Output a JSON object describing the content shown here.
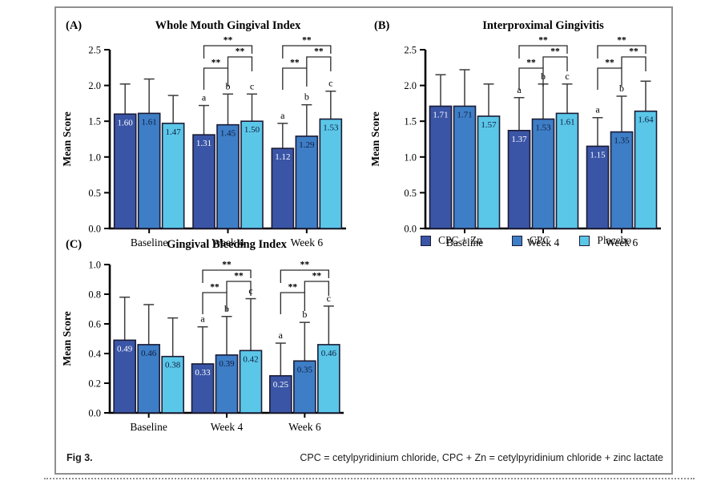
{
  "figure": {
    "caption_left": "Fig 3.",
    "caption_right": "CPC = cetylpyridinium chloride, CPC + Zn = cetylpyridinium chloride + zinc lactate"
  },
  "legend": {
    "position": "right-of-panel-C",
    "items": [
      {
        "label": "CPC + Zn",
        "color": "#3A55A6"
      },
      {
        "label": "CPC",
        "color": "#3E7EC6"
      },
      {
        "label": "Placebo",
        "color": "#5BC7E8"
      }
    ]
  },
  "colors": {
    "bar_outline": "#1b1b35",
    "error_bar": "#3c3c3c",
    "axis": "#000000",
    "value_label_on_dark": "#ffffff",
    "value_label_on_light": "#101c40",
    "figure_border": "#8f8f8f"
  },
  "chart_data": [
    {
      "type": "bar",
      "panel": "(A)",
      "title": "Whole Mouth Gingival Index",
      "ylabel": "Mean Score",
      "categories": [
        "Baseline",
        "Week 4",
        "Week 6"
      ],
      "yticks": [
        "0.0",
        "0.5",
        "1.0",
        "1.5",
        "2.0",
        "2.5"
      ],
      "ylim": [
        0,
        2.5
      ],
      "grid": false,
      "series": [
        {
          "name": "CPC + Zn",
          "values": [
            1.6,
            1.31,
            1.12
          ],
          "err_top": [
            2.02,
            1.72,
            1.47
          ]
        },
        {
          "name": "CPC",
          "values": [
            1.61,
            1.45,
            1.29
          ],
          "err_top": [
            2.09,
            1.88,
            1.73
          ]
        },
        {
          "name": "Placebo",
          "values": [
            1.47,
            1.5,
            1.53
          ],
          "err_top": [
            1.86,
            1.88,
            1.92
          ]
        }
      ],
      "sig": [
        {
          "group_index": 1,
          "letters": [
            "a",
            "b",
            "c"
          ],
          "brackets": [
            {
              "pair": [
                0,
                2
              ],
              "marker": "**"
            },
            {
              "pair": [
                1,
                2
              ],
              "marker": "**"
            },
            {
              "pair": [
                0,
                1
              ],
              "marker": "**"
            }
          ]
        },
        {
          "group_index": 2,
          "letters": [
            "a",
            "b",
            "c"
          ],
          "brackets": [
            {
              "pair": [
                0,
                2
              ],
              "marker": "**"
            },
            {
              "pair": [
                1,
                2
              ],
              "marker": "**"
            },
            {
              "pair": [
                0,
                1
              ],
              "marker": "**"
            }
          ]
        }
      ]
    },
    {
      "type": "bar",
      "panel": "(B)",
      "title": "Interproximal Gingivitis",
      "ylabel": "Mean Score",
      "categories": [
        "Baseline",
        "Week 4",
        "Week 6"
      ],
      "yticks": [
        "0.0",
        "0.5",
        "1.0",
        "1.5",
        "2.0",
        "2.5"
      ],
      "ylim": [
        0,
        2.5
      ],
      "grid": false,
      "series": [
        {
          "name": "CPC + Zn",
          "values": [
            1.71,
            1.37,
            1.15
          ],
          "err_top": [
            2.15,
            1.83,
            1.55
          ]
        },
        {
          "name": "CPC",
          "values": [
            1.71,
            1.53,
            1.35
          ],
          "err_top": [
            2.22,
            2.02,
            1.85
          ]
        },
        {
          "name": "Placebo",
          "values": [
            1.57,
            1.61,
            1.64
          ],
          "err_top": [
            2.02,
            2.02,
            2.06
          ]
        }
      ],
      "sig": [
        {
          "group_index": 1,
          "letters": [
            "a",
            "b",
            "c"
          ],
          "brackets": [
            {
              "pair": [
                0,
                2
              ],
              "marker": "**"
            },
            {
              "pair": [
                1,
                2
              ],
              "marker": "**"
            },
            {
              "pair": [
                0,
                1
              ],
              "marker": "**"
            }
          ]
        },
        {
          "group_index": 2,
          "letters": [
            "a",
            "b",
            ""
          ],
          "brackets": [
            {
              "pair": [
                0,
                2
              ],
              "marker": "**"
            },
            {
              "pair": [
                1,
                2
              ],
              "marker": "**"
            },
            {
              "pair": [
                0,
                1
              ],
              "marker": "**"
            }
          ]
        }
      ]
    },
    {
      "type": "bar",
      "panel": "(C)",
      "title": "Gingival Bleeding Index",
      "ylabel": "Mean Score",
      "categories": [
        "Baseline",
        "Week 4",
        "Week 6"
      ],
      "yticks": [
        "0.0",
        "0.2",
        "0.4",
        "0.6",
        "0.8",
        "1.0"
      ],
      "ylim": [
        0,
        1.0
      ],
      "grid": false,
      "series": [
        {
          "name": "CPC + Zn",
          "values": [
            0.49,
            0.33,
            0.25
          ],
          "err_top": [
            0.78,
            0.58,
            0.47
          ]
        },
        {
          "name": "CPC",
          "values": [
            0.46,
            0.39,
            0.35
          ],
          "err_top": [
            0.73,
            0.65,
            0.61
          ]
        },
        {
          "name": "Placebo",
          "values": [
            0.38,
            0.42,
            0.46
          ],
          "err_top": [
            0.64,
            0.77,
            0.72
          ]
        }
      ],
      "sig": [
        {
          "group_index": 1,
          "letters": [
            "a",
            "b",
            "c"
          ],
          "brackets": [
            {
              "pair": [
                0,
                2
              ],
              "marker": "**"
            },
            {
              "pair": [
                1,
                2
              ],
              "marker": "**"
            },
            {
              "pair": [
                0,
                1
              ],
              "marker": "**"
            }
          ]
        },
        {
          "group_index": 2,
          "letters": [
            "a",
            "b",
            "c"
          ],
          "brackets": [
            {
              "pair": [
                0,
                2
              ],
              "marker": "**"
            },
            {
              "pair": [
                1,
                2
              ],
              "marker": "**"
            },
            {
              "pair": [
                0,
                1
              ],
              "marker": "**"
            }
          ]
        }
      ]
    }
  ]
}
